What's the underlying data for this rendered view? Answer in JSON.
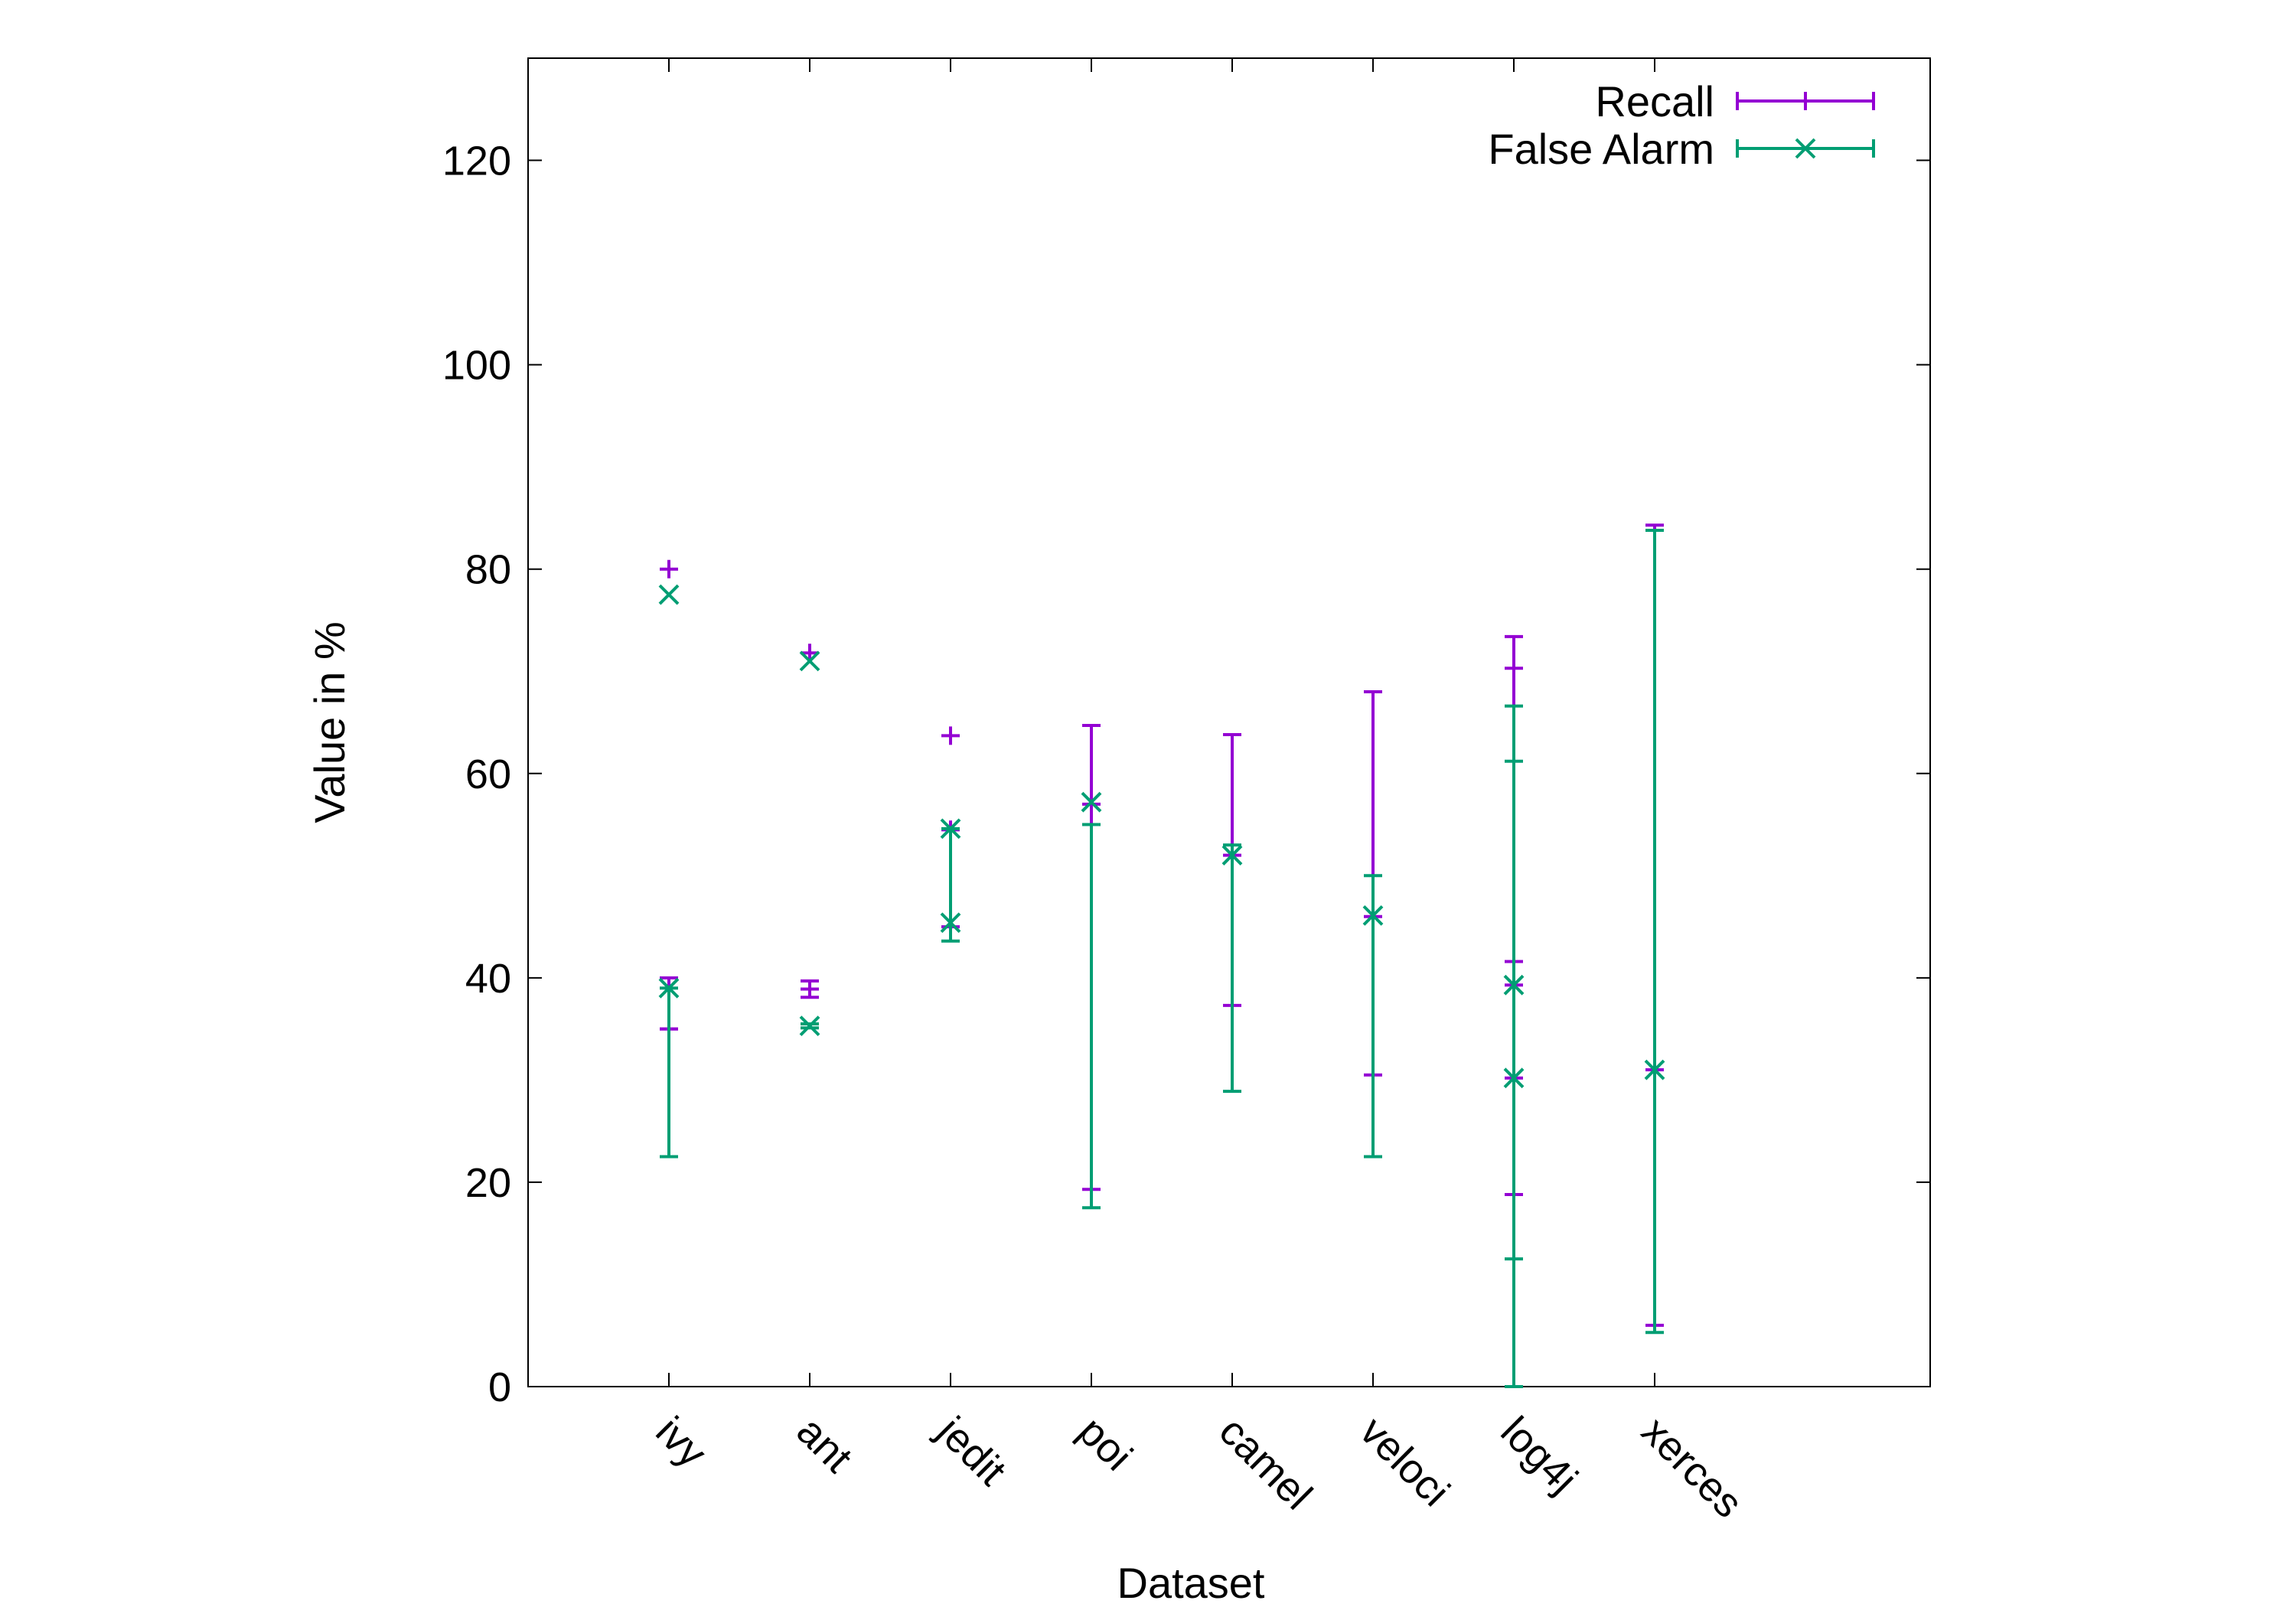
{
  "chart_data": {
    "type": "scatter",
    "title": "",
    "xlabel": "Dataset",
    "ylabel": "Value in %",
    "categories": [
      "ivy",
      "ant",
      "jedit",
      "poi",
      "camel",
      "veloci",
      "log4j",
      "xerces"
    ],
    "ylim": [
      0,
      130
    ],
    "yticks": [
      0,
      20,
      40,
      60,
      80,
      100,
      120
    ],
    "grid": false,
    "legend_position": "top-right",
    "series": [
      {
        "name": "Recall",
        "marker": "plus",
        "color": "#9400d3",
        "points": [
          {
            "category": "ivy",
            "y": 80.0,
            "bars": []
          },
          {
            "category": "ant",
            "y": 71.8,
            "bars": []
          },
          {
            "category": "jedit",
            "y": 63.7,
            "bars": []
          },
          {
            "category": "poi",
            "y": 57.0,
            "bars": [
              {
                "low": 19.3,
                "high": 64.7
              }
            ]
          },
          {
            "category": "camel",
            "y": 52.0,
            "bars": [
              {
                "low": 37.3,
                "high": 63.8
              }
            ]
          },
          {
            "category": "veloci",
            "y": 46.0,
            "bars": [
              {
                "low": 30.5,
                "high": 68.0
              }
            ]
          },
          {
            "category": "log4j",
            "y": 39.3,
            "bars": [
              {
                "low": 18.8,
                "high": 73.4
              }
            ]
          },
          {
            "category": "xerces",
            "y": 31.0,
            "bars": [
              {
                "low": 6.0,
                "high": 84.3
              }
            ]
          },
          {
            "category": "ivy",
            "y": 35.0,
            "bars": [
              {
                "low": 35.0,
                "high": 40.0
              }
            ]
          },
          {
            "category": "ant",
            "y": 38.9,
            "bars": [
              {
                "low": 38.1,
                "high": 39.7
              }
            ]
          },
          {
            "category": "jedit",
            "y": 54.5,
            "bars": [
              {
                "low": 45.0,
                "high": 54.5
              }
            ]
          },
          {
            "category": "log4j",
            "y": 30.2,
            "bars": [
              {
                "low": 41.6,
                "high": 70.3
              }
            ]
          }
        ]
      },
      {
        "name": "False Alarm",
        "marker": "cross",
        "color": "#009e73",
        "points": [
          {
            "category": "ivy",
            "y": 77.5,
            "bars": []
          },
          {
            "category": "ant",
            "y": 71.0,
            "bars": []
          },
          {
            "category": "jedit",
            "y": 54.6,
            "bars": []
          },
          {
            "category": "poi",
            "y": 57.2,
            "bars": [
              {
                "low": 17.5,
                "high": 55.0
              }
            ]
          },
          {
            "category": "camel",
            "y": 52.0,
            "bars": [
              {
                "low": 28.9,
                "high": 53.0
              }
            ]
          },
          {
            "category": "veloci",
            "y": 46.1,
            "bars": [
              {
                "low": 22.5,
                "high": 50.0
              }
            ]
          },
          {
            "category": "log4j",
            "y": 39.3,
            "bars": [
              {
                "low": 0.0,
                "high": 66.6
              }
            ]
          },
          {
            "category": "log4j",
            "y": 30.2,
            "bars": [
              {
                "low": 12.5,
                "high": 61.2
              }
            ]
          },
          {
            "category": "xerces",
            "y": 31.0,
            "bars": [
              {
                "low": 5.3,
                "high": 83.8
              }
            ]
          },
          {
            "category": "ivy",
            "y": 39.0,
            "bars": [
              {
                "low": 22.5,
                "high": 39.0
              }
            ]
          },
          {
            "category": "ant",
            "y": 35.3,
            "bars": [
              {
                "low": 35.1,
                "high": 35.5
              }
            ]
          },
          {
            "category": "jedit",
            "y": 45.4,
            "bars": [
              {
                "low": 43.6,
                "high": 54.6
              }
            ]
          }
        ]
      }
    ]
  }
}
